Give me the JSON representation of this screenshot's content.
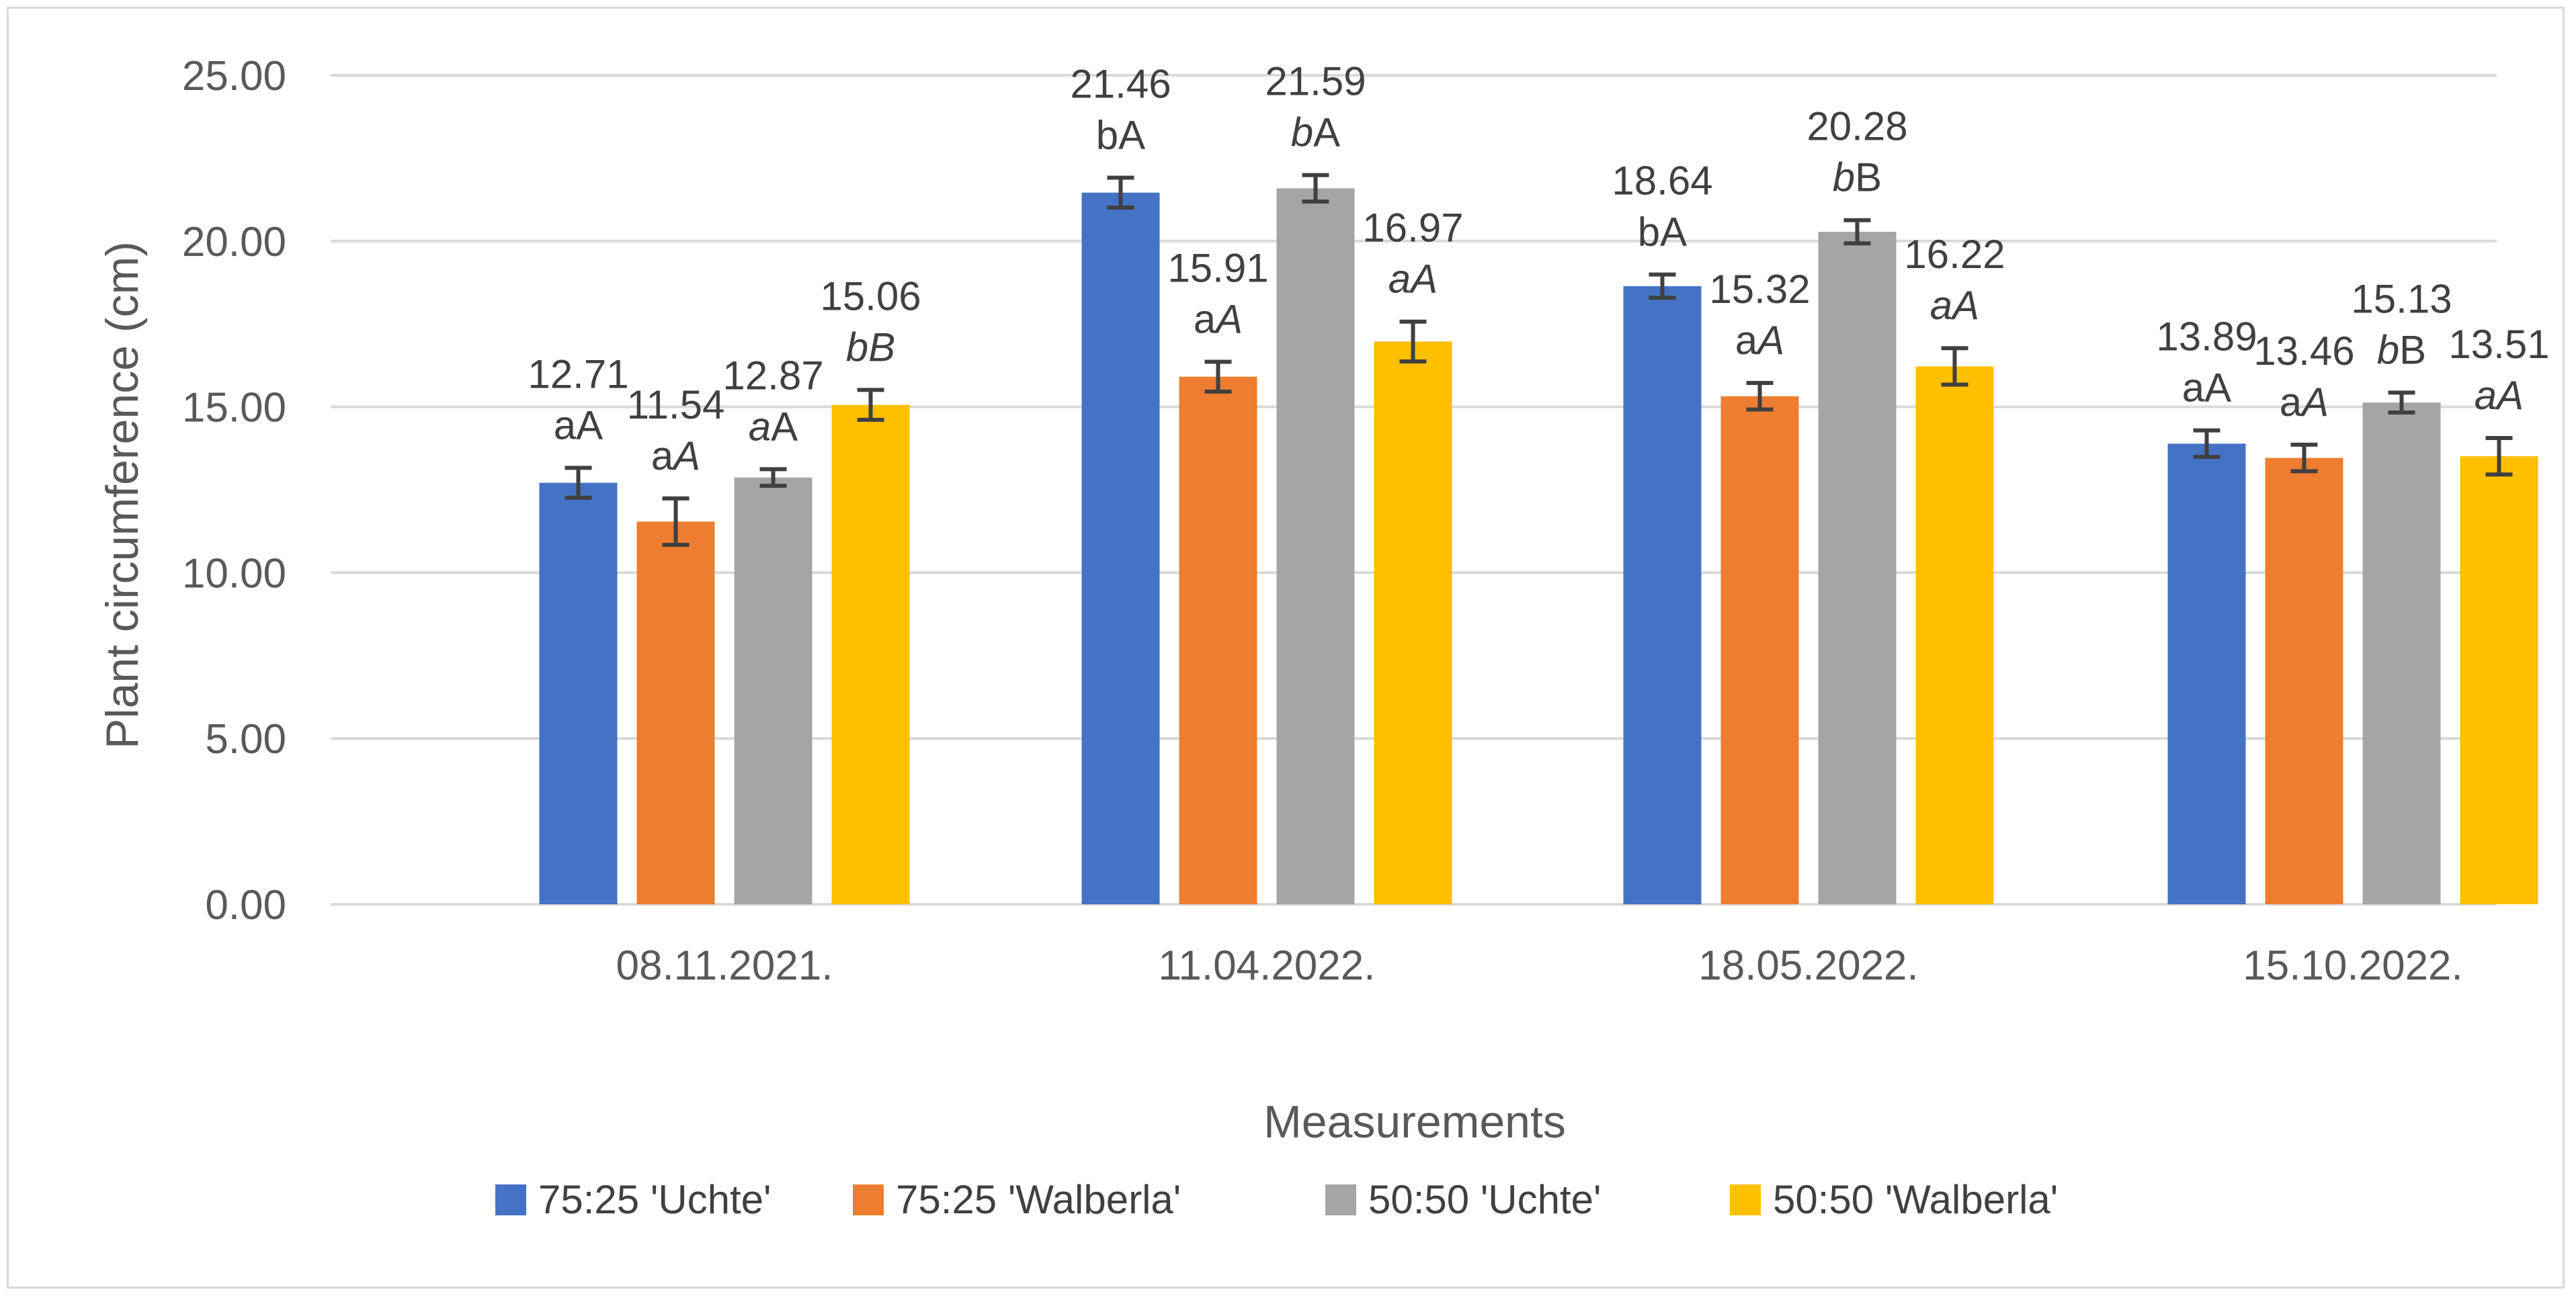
{
  "chart_data": {
    "type": "bar",
    "title": "",
    "xlabel": "Measurements",
    "ylabel": "Plant circumference (cm)",
    "ylim": [
      0,
      25
    ],
    "yticks": [
      "0.00",
      "5.00",
      "10.00",
      "15.00",
      "20.00",
      "25.00"
    ],
    "grid": true,
    "legend_position": "bottom",
    "categories": [
      "08.11.2021.",
      "11.04.2022.",
      "18.05.2022.",
      "15.10.2022."
    ],
    "series": [
      {
        "name": "75:25 'Uchte'",
        "color": "#4472c4",
        "values": [
          12.71,
          21.46,
          18.64,
          13.89
        ],
        "errors": [
          0.45,
          0.45,
          0.35,
          0.4
        ],
        "labels": [
          "12.71",
          "21.46",
          "18.64",
          "13.89"
        ],
        "letters": [
          {
            "a": "a",
            "b": "A",
            "a_italic": false,
            "b_italic": false
          },
          {
            "a": "b",
            "b": "A",
            "a_italic": false,
            "b_italic": false
          },
          {
            "a": "b",
            "b": "A",
            "a_italic": false,
            "b_italic": false
          },
          {
            "a": "a",
            "b": "A",
            "a_italic": false,
            "b_italic": false
          }
        ]
      },
      {
        "name": "75:25 'Walberla'",
        "color": "#ed7d31",
        "values": [
          11.54,
          15.91,
          15.32,
          13.46
        ],
        "errors": [
          0.7,
          0.45,
          0.4,
          0.4
        ],
        "labels": [
          "11.54",
          "15.91",
          "15.32",
          "13.46"
        ],
        "letters": [
          {
            "a": "a",
            "b": "A",
            "a_italic": false,
            "b_italic": true
          },
          {
            "a": "a",
            "b": "A",
            "a_italic": false,
            "b_italic": true
          },
          {
            "a": "a",
            "b": "A",
            "a_italic": false,
            "b_italic": true
          },
          {
            "a": "a",
            "b": "A",
            "a_italic": false,
            "b_italic": true
          }
        ]
      },
      {
        "name": "50:50 'Uchte'",
        "color": "#a5a5a5",
        "values": [
          12.87,
          21.59,
          20.28,
          15.13
        ],
        "errors": [
          0.25,
          0.4,
          0.35,
          0.3
        ],
        "labels": [
          "12.87",
          "21.59",
          "20.28",
          "15.13"
        ],
        "letters": [
          {
            "a": "a",
            "b": "A",
            "a_italic": true,
            "b_italic": false
          },
          {
            "a": "b",
            "b": "A",
            "a_italic": true,
            "b_italic": false
          },
          {
            "a": "b",
            "b": "B",
            "a_italic": true,
            "b_italic": false
          },
          {
            "a": "b",
            "b": "B",
            "a_italic": true,
            "b_italic": false
          }
        ]
      },
      {
        "name": "50:50 'Walberla'",
        "color": "#ffc000",
        "values": [
          15.06,
          16.97,
          16.22,
          13.51
        ],
        "errors": [
          0.45,
          0.6,
          0.55,
          0.55
        ],
        "labels": [
          "15.06",
          "16.97",
          "16.22",
          "13.51"
        ],
        "letters": [
          {
            "a": "b",
            "b": "B",
            "a_italic": true,
            "b_italic": true
          },
          {
            "a": "a",
            "b": "A",
            "a_italic": true,
            "b_italic": true
          },
          {
            "a": "a",
            "b": "A",
            "a_italic": true,
            "b_italic": true
          },
          {
            "a": "a",
            "b": "A",
            "a_italic": true,
            "b_italic": true
          }
        ]
      }
    ]
  }
}
